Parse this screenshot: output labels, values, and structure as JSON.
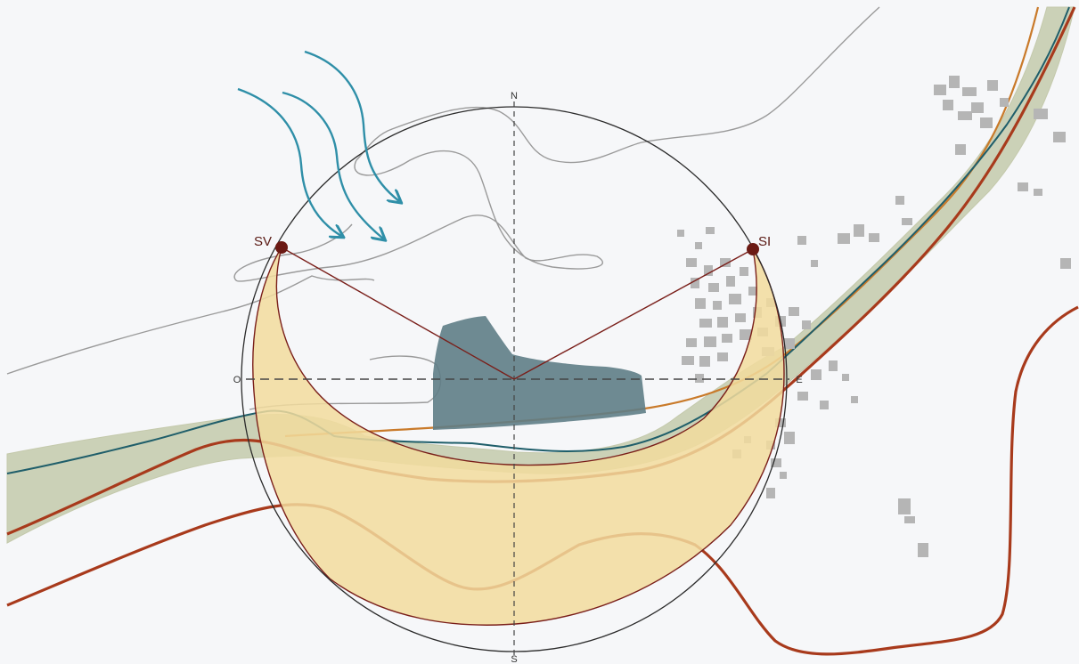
{
  "compass": {
    "north": "N",
    "south": "S",
    "west": "O",
    "east": "E"
  },
  "sun_points": {
    "winter": "SV",
    "summer": "SI"
  },
  "colors": {
    "background": "#f6f7f9",
    "sun_path_fill": "#f2dc9e",
    "sun_path_stroke": "#7a1f1a",
    "river_band": "#c9cfb4",
    "river_line": "#1f5e6a",
    "orange_road": "#c97a2a",
    "red_road": "#a83a1c",
    "building": "#b5b5b5",
    "site": "#5f7d86",
    "wind_arrow": "#2f8fa8",
    "contour": "#9a9a9a"
  },
  "icons": {
    "wind": "wind-arrow-icon",
    "sun": "sun-marker-icon"
  }
}
